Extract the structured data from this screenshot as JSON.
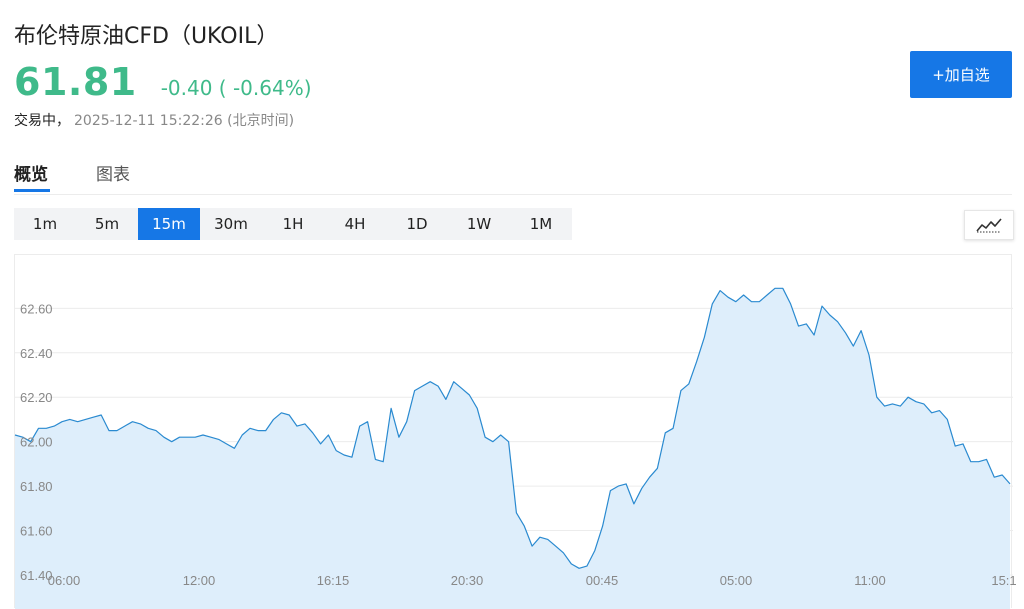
{
  "header": {
    "title": "布伦特原油CFD（UKOIL）",
    "price": "61.81",
    "change": "-0.40 ( -0.64%)",
    "status": "交易中，",
    "timestamp": "2025-12-11 15:22:26 (北京时间)",
    "add_button": "+加自选",
    "price_color": "#3fba8a"
  },
  "tabs": [
    {
      "label": "概览",
      "active": true
    },
    {
      "label": "图表",
      "active": false
    }
  ],
  "intervals": [
    {
      "label": "1m",
      "active": false
    },
    {
      "label": "5m",
      "active": false
    },
    {
      "label": "15m",
      "active": true
    },
    {
      "label": "30m",
      "active": false
    },
    {
      "label": "1H",
      "active": false
    },
    {
      "label": "4H",
      "active": false
    },
    {
      "label": "1D",
      "active": false
    },
    {
      "label": "1W",
      "active": false
    },
    {
      "label": "1M",
      "active": false
    }
  ],
  "chart_type_icon": "line-chart-icon",
  "colors": {
    "accent": "#1677e6",
    "line": "#2a8ad0",
    "fill": "#deeefb",
    "grid": "#ececec"
  },
  "chart_data": {
    "type": "area",
    "title": "",
    "xlabel": "",
    "ylabel": "",
    "ylim": [
      61.4,
      62.75
    ],
    "yticks": [
      "61.40",
      "61.60",
      "61.80",
      "62.00",
      "62.20",
      "62.40",
      "62.60"
    ],
    "xticks": [
      "06:00",
      "12:00",
      "16:15",
      "20:30",
      "00:45",
      "05:00",
      "11:00",
      "15:1"
    ],
    "grid": true,
    "series": [
      {
        "values": [
          62.03,
          62.02,
          62.0,
          62.06,
          62.06,
          62.07,
          62.09,
          62.1,
          62.09,
          62.1,
          62.11,
          62.12,
          62.05,
          62.05,
          62.07,
          62.09,
          62.08,
          62.06,
          62.05,
          62.02,
          62.0,
          62.02,
          62.02,
          62.02,
          62.03,
          62.02,
          62.01,
          61.99,
          61.97,
          62.03,
          62.06,
          62.05,
          62.05,
          62.1,
          62.13,
          62.12,
          62.07,
          62.08,
          62.04,
          61.99,
          62.03,
          61.96,
          61.94,
          61.93,
          62.07,
          62.09,
          61.92,
          61.91,
          62.15,
          62.02,
          62.09,
          62.23,
          62.25,
          62.27,
          62.25,
          62.19,
          62.27,
          62.24,
          62.21,
          62.15,
          62.02,
          62.0,
          62.03,
          62.0,
          61.68,
          61.62,
          61.53,
          61.57,
          61.56,
          61.53,
          61.5,
          61.45,
          61.43,
          61.44,
          61.51,
          61.62,
          61.78,
          61.8,
          61.81,
          61.72,
          61.79,
          61.84,
          61.88,
          62.04,
          62.06,
          62.23,
          62.26,
          62.36,
          62.47,
          62.62,
          62.68,
          62.65,
          62.63,
          62.66,
          62.63,
          62.63,
          62.66,
          62.69,
          62.69,
          62.62,
          62.52,
          62.53,
          62.48,
          62.61,
          62.57,
          62.54,
          62.49,
          62.43,
          62.5,
          62.39,
          62.2,
          62.16,
          62.17,
          62.16,
          62.2,
          62.18,
          62.17,
          62.13,
          62.14,
          62.1,
          61.98,
          61.99,
          61.91,
          61.91,
          61.92,
          61.84,
          61.85,
          61.81
        ]
      }
    ]
  }
}
